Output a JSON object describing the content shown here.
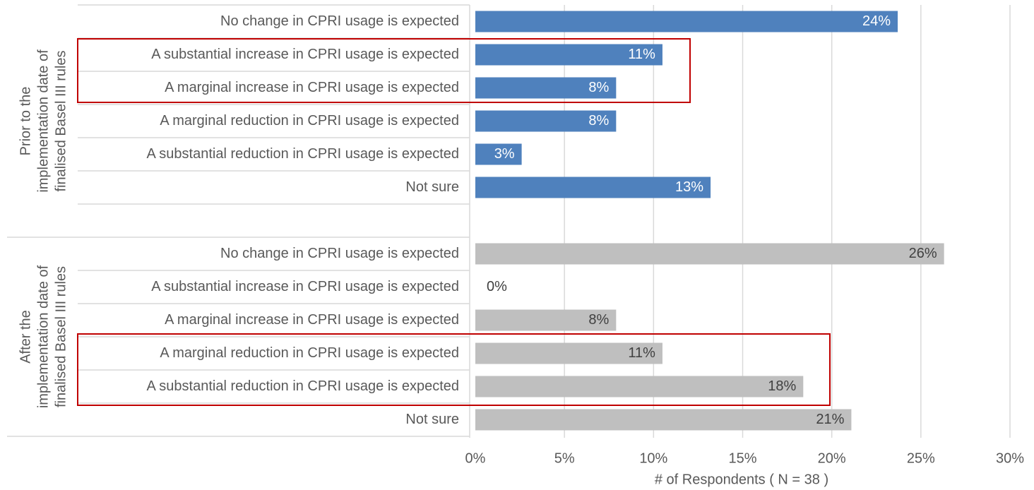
{
  "chart_data": {
    "type": "bar",
    "orientation": "horizontal",
    "xlabel": "# of Respondents ( N = 38 )",
    "xlim": [
      0,
      30
    ],
    "xticks": [
      {
        "value": 0,
        "label": "0%"
      },
      {
        "value": 5,
        "label": "5%"
      },
      {
        "value": 10,
        "label": "10%"
      },
      {
        "value": 15,
        "label": "15%"
      },
      {
        "value": 20,
        "label": "20%"
      },
      {
        "value": 25,
        "label": "25%"
      },
      {
        "value": 30,
        "label": "30%"
      }
    ],
    "grid": true,
    "groups": [
      {
        "label_lines": [
          "Prior to the",
          "implementation date of",
          "finalised Basel III rules"
        ],
        "color": "#4f81bd",
        "categories": [
          "No change in CPRI usage is expected",
          "A substantial increase in CPRI usage is expected",
          "A marginal increase in CPRI usage is expected",
          "A marginal reduction in CPRI usage is expected",
          "A substantial reduction in CPRI usage is expected",
          "Not sure"
        ],
        "values": [
          23.7,
          10.5,
          7.9,
          7.9,
          2.6,
          13.2
        ],
        "value_labels": [
          "24%",
          "11%",
          "8%",
          "8%",
          "3%",
          "13%"
        ]
      },
      {
        "label_lines": [
          "After the",
          "implementation date of",
          "finalised Basel III rules"
        ],
        "color": "#bfbfbf",
        "categories": [
          "No change in CPRI usage is expected",
          "A substantial increase in CPRI usage is expected",
          "A marginal increase in CPRI usage is expected",
          "A marginal reduction in CPRI usage is expected",
          "A substantial reduction in CPRI usage is expected",
          "Not sure"
        ],
        "values": [
          26.3,
          0,
          7.9,
          10.5,
          18.4,
          21.1
        ],
        "value_labels": [
          "26%",
          "0%",
          "8%",
          "11%",
          "18%",
          "21%"
        ]
      }
    ]
  }
}
